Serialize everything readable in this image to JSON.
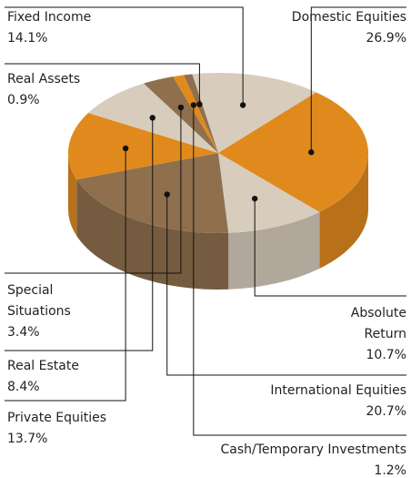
{
  "chart_data": {
    "type": "pie",
    "labels": [
      "Fixed Income",
      "Domestic Equities",
      "Absolute Return",
      "International Equities",
      "Private Equities",
      "Real Estate",
      "Special Situations",
      "Cash/Temporary Investments",
      "Real Assets"
    ],
    "values": [
      14.1,
      26.9,
      10.7,
      20.7,
      13.7,
      8.4,
      3.4,
      1.2,
      0.9
    ],
    "value_labels": [
      "14.1%",
      "26.9%",
      "10.7%",
      "20.7%",
      "13.7%",
      "8.4%",
      "3.4%",
      "1.2%",
      "0.9%"
    ],
    "colors": [
      "#d8ccbc",
      "#e08a1e",
      "#d8ccbc",
      "#8f6f4d",
      "#e08a1e",
      "#d8ccbc",
      "#8f6f4d",
      "#e08a1e",
      "#8f6f4d"
    ]
  }
}
